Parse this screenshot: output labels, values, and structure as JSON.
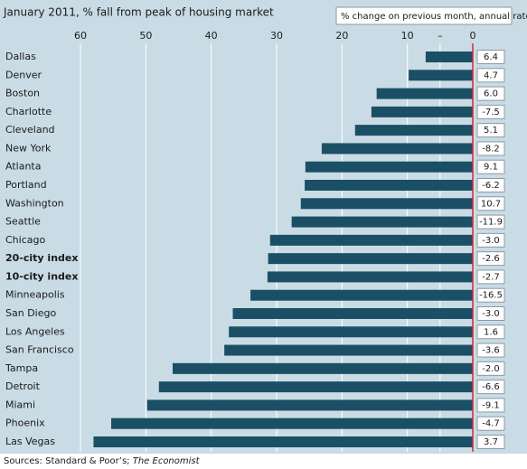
{
  "chart_data": {
    "type": "bar",
    "orientation": "horizontal",
    "title": "January 2011, % fall from peak of housing market",
    "value_header": "% change on previous month, annual rate",
    "source": "Sources: Standard & Poor’s;",
    "source_italic": "The Economist",
    "categories": [
      "Dallas",
      "Denver",
      "Boston",
      "Charlotte",
      "Cleveland",
      "New York",
      "Atlanta",
      "Portland",
      "Washington",
      "Seattle",
      "Chicago",
      "20-city index",
      "10-city index",
      "Minneapolis",
      "San Diego",
      "Los Angeles",
      "San Francisco",
      "Tampa",
      "Detroit",
      "Miami",
      "Phoenix",
      "Las Vegas"
    ],
    "values": [
      7.2,
      9.8,
      14.7,
      15.5,
      18.0,
      23.1,
      25.6,
      25.7,
      26.3,
      27.7,
      31.0,
      31.3,
      31.4,
      34.0,
      36.7,
      37.3,
      38.0,
      45.9,
      48.0,
      49.8,
      55.3,
      58.0
    ],
    "monthly_change": [
      6.4,
      4.7,
      6.0,
      -7.5,
      5.1,
      -8.2,
      9.1,
      -6.2,
      10.7,
      -11.9,
      -3.0,
      -2.6,
      -2.7,
      -16.5,
      -3.0,
      1.6,
      -3.6,
      -2.0,
      -6.6,
      -9.1,
      -4.7,
      3.7
    ],
    "monthly_change_labels": [
      "6.4",
      "4.7",
      "6.0",
      "-7.5",
      "5.1",
      "-8.2",
      "9.1",
      "-6.2",
      "10.7",
      "-11.9",
      "-3.0",
      "-2.6",
      "-2.7",
      "-16.5",
      "-3.0",
      "1.6",
      "-3.6",
      "-2.0",
      "-6.6",
      "-9.1",
      "-4.7",
      "3.7"
    ],
    "bold_categories": [
      11,
      12
    ],
    "color": "#1b4f66",
    "zero_line_color": "#e0242c",
    "xlim": [
      60,
      0
    ],
    "reversed": true,
    "xticks": [
      60,
      50,
      40,
      30,
      20,
      10,
      {
        "value": 5,
        "label": "–"
      },
      0
    ],
    "grid": true
  }
}
